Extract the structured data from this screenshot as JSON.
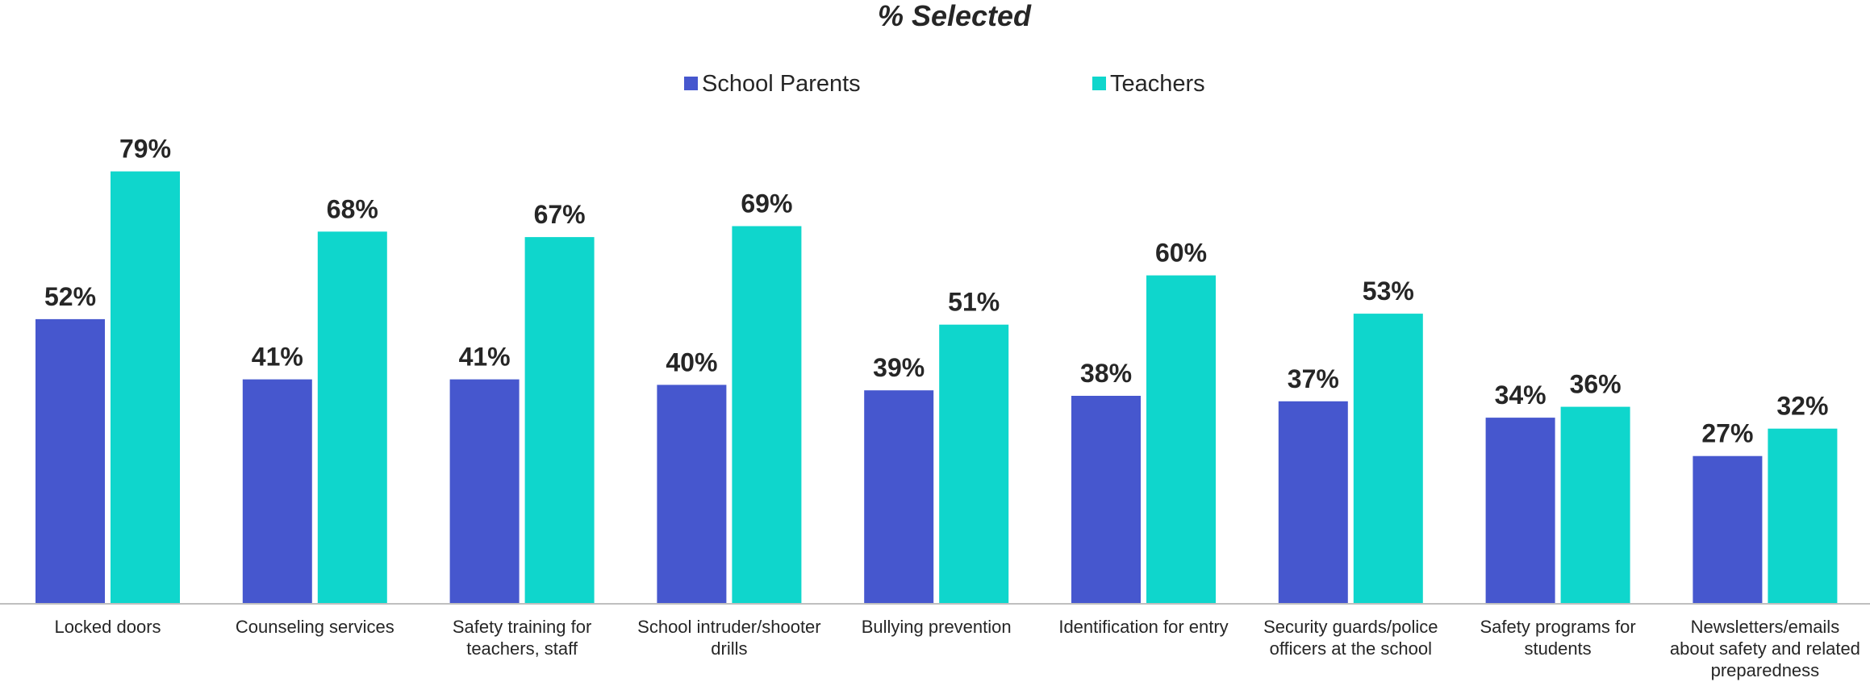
{
  "chart_data": {
    "type": "bar",
    "title": "% Selected",
    "xlabel": "",
    "ylabel": "",
    "ylim": [
      0,
      90
    ],
    "grid": false,
    "legend_position": "top-center",
    "categories": [
      [
        "Locked doors"
      ],
      [
        "Counseling services"
      ],
      [
        "Safety training for",
        "teachers, staff"
      ],
      [
        "School intruder/shooter",
        "drills"
      ],
      [
        "Bullying prevention"
      ],
      [
        "Identification for entry"
      ],
      [
        "Security guards/police",
        "officers at the school"
      ],
      [
        "Safety programs for",
        "students"
      ],
      [
        "Newsletters/emails",
        "about safety and related",
        "preparedness"
      ]
    ],
    "series": [
      {
        "name": "School Parents",
        "color": "#4657CE",
        "values": [
          52,
          41,
          41,
          40,
          39,
          38,
          37,
          34,
          27
        ],
        "labels": [
          "52%",
          "41%",
          "41%",
          "40%",
          "39%",
          "38%",
          "37%",
          "34%",
          "27%"
        ]
      },
      {
        "name": "Teachers",
        "color": "#0FD6CC",
        "values": [
          79,
          68,
          67,
          69,
          51,
          60,
          53,
          36,
          32
        ],
        "labels": [
          "79%",
          "68%",
          "67%",
          "69%",
          "51%",
          "60%",
          "53%",
          "36%",
          "32%"
        ]
      }
    ]
  }
}
